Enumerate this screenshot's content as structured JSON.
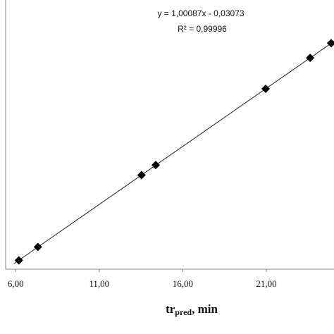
{
  "chart_data": {
    "type": "scatter",
    "x": [
      6.19,
      7.33,
      13.53,
      14.38,
      20.96,
      23.62,
      24.88
    ],
    "series": [
      {
        "color": "#000000",
        "values": [
          6.16,
          7.31,
          13.51,
          14.37,
          20.95,
          23.61,
          24.88
        ]
      }
    ],
    "xlim": [
      5.4,
      25.05
    ],
    "ylim": [
      5.4,
      28.6
    ],
    "xticks": [
      {
        "value": 6,
        "label": "6,00"
      },
      {
        "value": 11,
        "label": "11,00"
      },
      {
        "value": 16,
        "label": "16,00"
      },
      {
        "value": 21,
        "label": "21,00"
      }
    ],
    "x_label": "tr",
    "x_label_sub": "pred",
    "x_label_suffix": ", min",
    "equation": "y = 1,00087x - 0,03073",
    "r_squared": "R² = 0,99996",
    "trendline": {
      "slope": 1.00087,
      "intercept": -0.03073
    }
  }
}
